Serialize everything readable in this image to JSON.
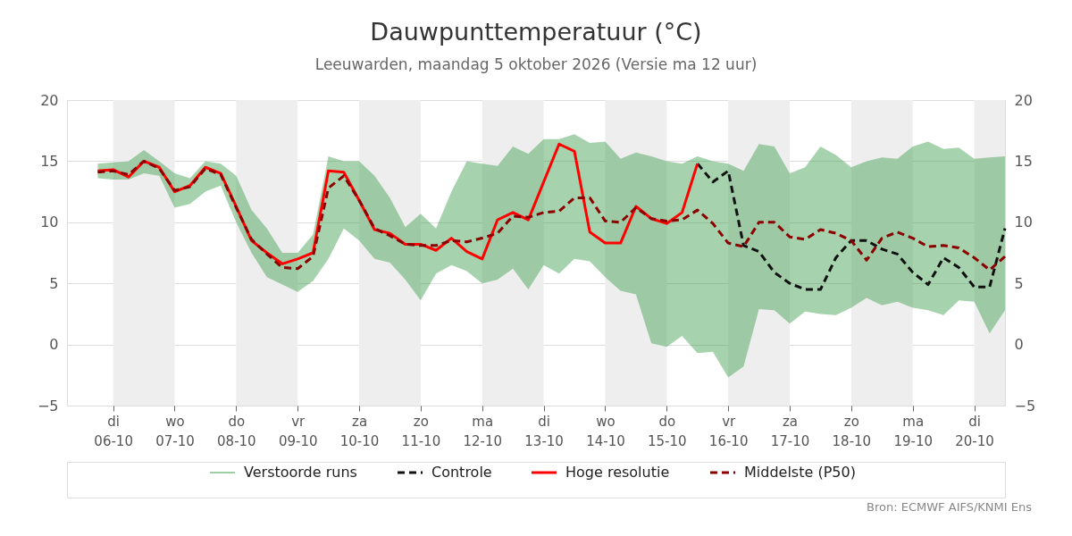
{
  "chart_data": {
    "type": "line",
    "title": "Dauwpunttemperatuur (°C)",
    "subtitle": "Leeuwarden, maandag  5 oktober 2026 (Versie ma 12 uur)",
    "x": [
      "2026-10-05T18:00",
      "2026-10-06T00:00",
      "2026-10-06T06:00",
      "2026-10-06T12:00",
      "2026-10-06T18:00",
      "2026-10-07T00:00",
      "2026-10-07T06:00",
      "2026-10-07T12:00",
      "2026-10-07T18:00",
      "2026-10-08T00:00",
      "2026-10-08T06:00",
      "2026-10-08T12:00",
      "2026-10-08T18:00",
      "2026-10-09T00:00",
      "2026-10-09T06:00",
      "2026-10-09T12:00",
      "2026-10-09T18:00",
      "2026-10-10T00:00",
      "2026-10-10T06:00",
      "2026-10-10T12:00",
      "2026-10-10T18:00",
      "2026-10-11T00:00",
      "2026-10-11T06:00",
      "2026-10-11T12:00",
      "2026-10-11T18:00",
      "2026-10-12T00:00",
      "2026-10-12T06:00",
      "2026-10-12T12:00",
      "2026-10-12T18:00",
      "2026-10-13T00:00",
      "2026-10-13T06:00",
      "2026-10-13T12:00",
      "2026-10-13T18:00",
      "2026-10-14T00:00",
      "2026-10-14T06:00",
      "2026-10-14T12:00",
      "2026-10-14T18:00",
      "2026-10-15T00:00",
      "2026-10-15T06:00",
      "2026-10-15T12:00",
      "2026-10-15T18:00",
      "2026-10-16T00:00",
      "2026-10-16T06:00",
      "2026-10-16T12:00",
      "2026-10-16T18:00",
      "2026-10-17T00:00",
      "2026-10-17T06:00",
      "2026-10-17T12:00",
      "2026-10-17T18:00",
      "2026-10-18T00:00",
      "2026-10-18T06:00",
      "2026-10-18T12:00",
      "2026-10-18T18:00",
      "2026-10-19T00:00",
      "2026-10-19T06:00",
      "2026-10-19T12:00",
      "2026-10-19T18:00",
      "2026-10-20T00:00",
      "2026-10-20T06:00",
      "2026-10-20T12:00"
    ],
    "xlim": [
      "2026-10-05T06:00",
      "2026-10-20T12:00"
    ],
    "xticks": [
      {
        "value": "2026-10-06",
        "label": "di 06-10"
      },
      {
        "value": "2026-10-07",
        "label": "wo 07-10"
      },
      {
        "value": "2026-10-08",
        "label": "do 08-10"
      },
      {
        "value": "2026-10-09",
        "label": "vr 09-10"
      },
      {
        "value": "2026-10-10",
        "label": "za 10-10"
      },
      {
        "value": "2026-10-11",
        "label": "zo 11-10"
      },
      {
        "value": "2026-10-12",
        "label": "ma 12-10"
      },
      {
        "value": "2026-10-13",
        "label": "di 13-10"
      },
      {
        "value": "2026-10-14",
        "label": "wo 14-10"
      },
      {
        "value": "2026-10-15",
        "label": "do 15-10"
      },
      {
        "value": "2026-10-16",
        "label": "vr 16-10"
      },
      {
        "value": "2026-10-17",
        "label": "za 17-10"
      },
      {
        "value": "2026-10-18",
        "label": "zo 18-10"
      },
      {
        "value": "2026-10-19",
        "label": "ma 19-10"
      },
      {
        "value": "2026-10-20",
        "label": "di 20-10"
      }
    ],
    "ylim": [
      -5,
      20
    ],
    "yticks": [
      -5,
      0,
      5,
      10,
      15,
      20
    ],
    "y2lim": [
      -5,
      20
    ],
    "y2ticks": [
      -5,
      0,
      5,
      10,
      15,
      20
    ],
    "grid": "y",
    "legend": "bottom",
    "bands": [
      {
        "axis": "x",
        "from": "2026-10-06",
        "to": "2026-10-07",
        "label": null,
        "color": "#eeeeee"
      },
      {
        "axis": "x",
        "from": "2026-10-08",
        "to": "2026-10-09",
        "label": null,
        "color": "#eeeeee"
      },
      {
        "axis": "x",
        "from": "2026-10-10",
        "to": "2026-10-11",
        "label": null,
        "color": "#eeeeee"
      },
      {
        "axis": "x",
        "from": "2026-10-12",
        "to": "2026-10-13",
        "label": null,
        "color": "#eeeeee"
      },
      {
        "axis": "x",
        "from": "2026-10-14",
        "to": "2026-10-15",
        "label": null,
        "color": "#eeeeee"
      },
      {
        "axis": "x",
        "from": "2026-10-16",
        "to": "2026-10-17",
        "label": null,
        "color": "#eeeeee"
      },
      {
        "axis": "x",
        "from": "2026-10-18",
        "to": "2026-10-19",
        "label": null,
        "color": "#eeeeee"
      },
      {
        "axis": "x",
        "from": "2026-10-20",
        "to": "2026-10-20T12:00",
        "label": null,
        "color": "#eeeeee"
      }
    ],
    "series": [
      {
        "name": "Verstoorde runs",
        "type": "area",
        "color": "#3a9e4a",
        "values": [
          null,
          null,
          null,
          null,
          null,
          null,
          null,
          null,
          null,
          null,
          null,
          null,
          null,
          null,
          null,
          null,
          null,
          null,
          null,
          null,
          null,
          null,
          null,
          null,
          null,
          null,
          null,
          null,
          null,
          null,
          null,
          null,
          null,
          null,
          null,
          null,
          null,
          null,
          null,
          null,
          null,
          null,
          null,
          null,
          null,
          null,
          null,
          null,
          null,
          null,
          null,
          null,
          null,
          null,
          null,
          null,
          null,
          null,
          null,
          null
        ],
        "lower": [
          13.6,
          13.5,
          13.5,
          14.0,
          13.8,
          11.2,
          11.5,
          12.5,
          13.0,
          10.0,
          7.5,
          5.5,
          4.9,
          4.3,
          5.2,
          7.0,
          9.5,
          8.5,
          7.0,
          6.7,
          5.3,
          3.6,
          5.8,
          6.5,
          6.0,
          5.0,
          5.3,
          6.2,
          4.5,
          6.5,
          5.8,
          7.0,
          6.8,
          5.5,
          4.4,
          4.1,
          0.1,
          -0.2,
          0.7,
          -0.7,
          -0.6,
          -2.7,
          -1.8,
          2.9,
          2.8,
          1.7,
          2.7,
          2.5,
          2.4,
          3.0,
          3.8,
          3.2,
          3.5,
          3.0,
          2.8,
          2.4,
          3.6,
          3.5,
          0.9,
          2.8
        ],
        "upper": [
          14.8,
          14.9,
          15.0,
          15.9,
          15.0,
          14.0,
          13.6,
          15.0,
          14.8,
          13.8,
          11.0,
          9.5,
          7.5,
          7.5,
          9.0,
          15.4,
          15.0,
          15.0,
          13.8,
          12.0,
          9.6,
          10.7,
          9.5,
          12.5,
          15.0,
          14.8,
          14.6,
          16.2,
          15.6,
          16.8,
          16.8,
          17.2,
          16.5,
          16.6,
          15.2,
          15.7,
          15.4,
          15.0,
          14.8,
          15.4,
          15.0,
          14.8,
          14.2,
          16.4,
          16.2,
          14.0,
          14.5,
          16.2,
          15.5,
          14.5,
          15.0,
          15.3,
          15.2,
          16.2,
          16.6,
          16.0,
          16.1,
          15.2,
          15.3,
          15.4
        ]
      },
      {
        "name": "Controle",
        "color": "#111111",
        "line_style": "dashed",
        "values": [
          null,
          null,
          null,
          null,
          null,
          null,
          null,
          null,
          null,
          null,
          null,
          null,
          null,
          null,
          null,
          null,
          null,
          null,
          null,
          null,
          null,
          null,
          null,
          null,
          null,
          null,
          null,
          null,
          null,
          null,
          null,
          null,
          null,
          null,
          null,
          null,
          null,
          null,
          null,
          14.8,
          13.3,
          14.2,
          8.1,
          7.6,
          5.9,
          5.0,
          4.5,
          4.5,
          7.1,
          8.5,
          8.5,
          7.8,
          7.4,
          5.9,
          4.9,
          7.1,
          6.3,
          4.7,
          4.7,
          9.5
        ]
      },
      {
        "name": "Hoge resolutie",
        "color": "#ff0000",
        "line_style": "solid",
        "values": [
          14.2,
          14.3,
          13.7,
          15.0,
          14.5,
          12.5,
          13.0,
          14.5,
          14.0,
          11.3,
          8.5,
          7.5,
          6.6,
          7.0,
          7.5,
          14.2,
          14.1,
          11.8,
          9.4,
          9.1,
          8.2,
          8.2,
          7.7,
          8.7,
          7.6,
          7.0,
          10.2,
          10.8,
          10.2,
          13.3,
          16.4,
          15.8,
          9.2,
          8.3,
          8.3,
          11.3,
          10.3,
          9.9,
          10.8,
          14.8,
          null,
          null,
          null,
          null,
          null,
          null,
          null,
          null,
          null,
          null,
          null,
          null,
          null,
          null,
          null,
          null,
          null,
          null,
          null,
          null
        ]
      },
      {
        "name": "Middelste (P50)",
        "color": "#8b0000",
        "line_style": "dashed",
        "values": [
          14.1,
          14.2,
          13.9,
          15.0,
          14.4,
          12.6,
          12.9,
          14.4,
          13.9,
          11.2,
          8.6,
          7.4,
          6.3,
          6.2,
          7.2,
          12.8,
          13.8,
          11.8,
          9.5,
          8.9,
          8.2,
          8.1,
          8.1,
          8.5,
          8.4,
          8.7,
          9.1,
          10.5,
          10.4,
          10.8,
          10.9,
          12.0,
          12.0,
          10.1,
          10.0,
          11.2,
          10.3,
          10.1,
          10.2,
          11.0,
          9.9,
          8.3,
          8.0,
          10.0,
          10.0,
          8.8,
          8.6,
          9.4,
          9.1,
          8.5,
          6.9,
          8.7,
          9.2,
          8.7,
          8.0,
          8.1,
          7.9,
          7.1,
          6.1,
          7.2
        ]
      }
    ],
    "annotations": [
      "Bron: ECMWF AIFS/KNMI Ens"
    ]
  }
}
